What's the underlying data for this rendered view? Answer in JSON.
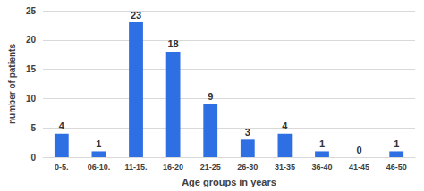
{
  "chart_data": {
    "type": "bar",
    "x_label": "Age groups in years",
    "y_label": "number of patients",
    "categories": [
      "0-5.",
      "06-10.",
      "11-15.",
      "16-20",
      "21-25",
      "26-30",
      "31-35",
      "36-40",
      "41-45",
      "46-50"
    ],
    "values": [
      4,
      1,
      23,
      18,
      9,
      3,
      4,
      1,
      0,
      1
    ],
    "color": "#2f6fe4",
    "ylim": [
      0,
      25
    ],
    "yticks": [
      0,
      5,
      10,
      15,
      20,
      25
    ],
    "grid": true,
    "data_labels": true
  }
}
